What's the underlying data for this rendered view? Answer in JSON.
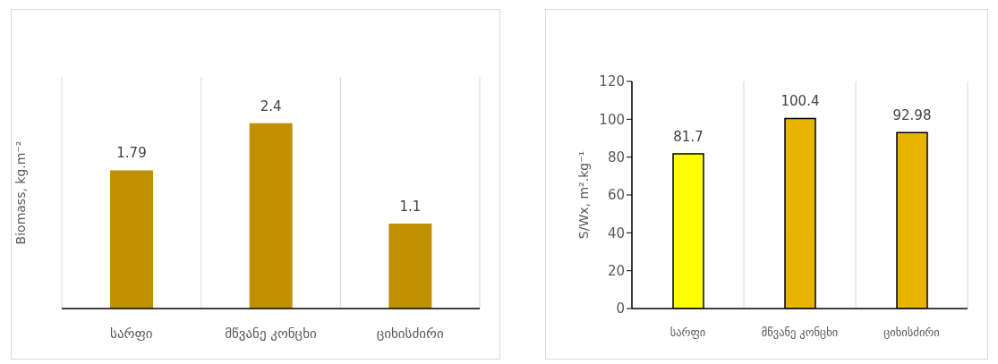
{
  "chart_data": [
    {
      "type": "bar",
      "ylabel": "Biomass, kg.m⁻²",
      "categories": [
        "სარფი",
        "მწვანე კონცხი",
        "ციხისძირი"
      ],
      "values": [
        1.79,
        2.4,
        1.1
      ],
      "color": "#bf9000",
      "data_labels": true,
      "grid": "x"
    },
    {
      "type": "bar",
      "ylabel": "S/Wx, m².kg⁻¹",
      "categories": [
        "სარფი",
        "მწვანე კონცხი",
        "ციხისძირი"
      ],
      "values": [
        81.7,
        100.4,
        92.98
      ],
      "colors": [
        "#ffff00",
        "#e8b400",
        "#e8b400"
      ],
      "ylim": [
        0,
        120
      ],
      "yticks": [
        0,
        20,
        40,
        60,
        80,
        100,
        120
      ],
      "data_labels": true,
      "grid": "x"
    }
  ]
}
